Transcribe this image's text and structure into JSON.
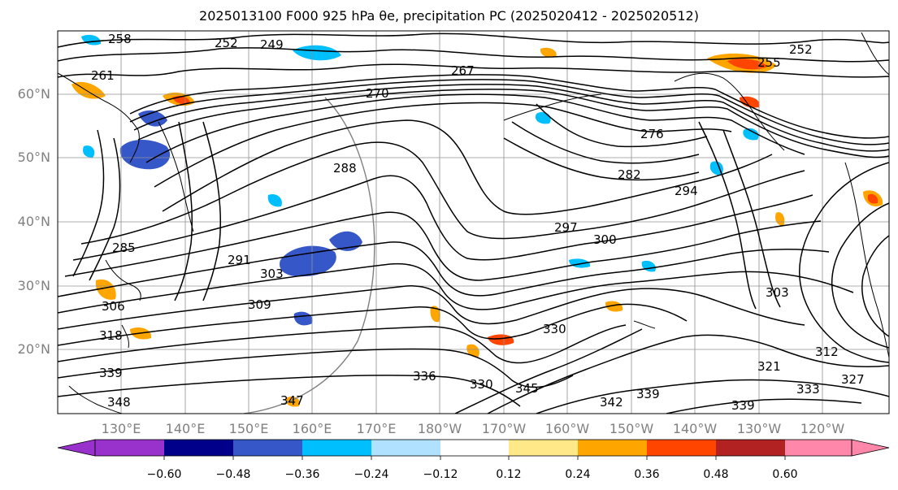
{
  "title": "2025013100 F000 925 hPa θe, precipitation PC (2025020412 - 2025020512)",
  "lat_labels": [
    "60°N",
    "50°N",
    "40°N",
    "30°N",
    "20°N"
  ],
  "lon_labels": [
    "130°E",
    "140°E",
    "150°E",
    "160°E",
    "170°E",
    "180°W",
    "170°W",
    "160°W",
    "150°W",
    "140°W",
    "130°W",
    "120°W"
  ],
  "contour_labels": [
    "258",
    "252",
    "249",
    "261",
    "267",
    "276",
    "282",
    "294",
    "297",
    "300",
    "291",
    "285",
    "303",
    "309",
    "306",
    "318",
    "339",
    "348",
    "347",
    "336",
    "345",
    "330",
    "333",
    "342",
    "321",
    "312",
    "327",
    "288",
    "255",
    "270"
  ],
  "colorbar": {
    "ticks": [
      "−0.60",
      "−0.48",
      "−0.36",
      "−0.24",
      "−0.12",
      "0.12",
      "0.24",
      "0.36",
      "0.48",
      "0.60"
    ],
    "colors": [
      "#9932cc",
      "#00008b",
      "#3657c8",
      "#00bfff",
      "#b0e2ff",
      "#ffffff",
      "#ffe888",
      "#ffa500",
      "#ff4500",
      "#b22222",
      "#ff88aa"
    ]
  },
  "colors": {
    "contour": "#000000",
    "grid": "#808080",
    "coast": "#000000"
  }
}
